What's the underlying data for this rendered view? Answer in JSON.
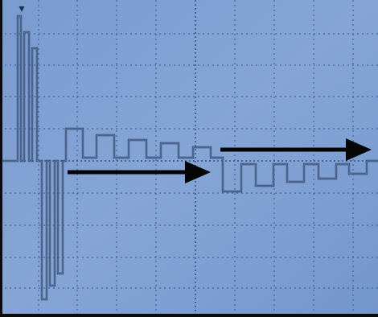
{
  "screen": {
    "background_color": "#7f9fd0",
    "grid_color": "#3d5a8a",
    "trace_color": "#2a3f66",
    "arrow_color": "#050505",
    "grid": true
  },
  "trigger_marker": {
    "icon": "down-arrow-marker-icon",
    "glyph": "▾"
  }
}
